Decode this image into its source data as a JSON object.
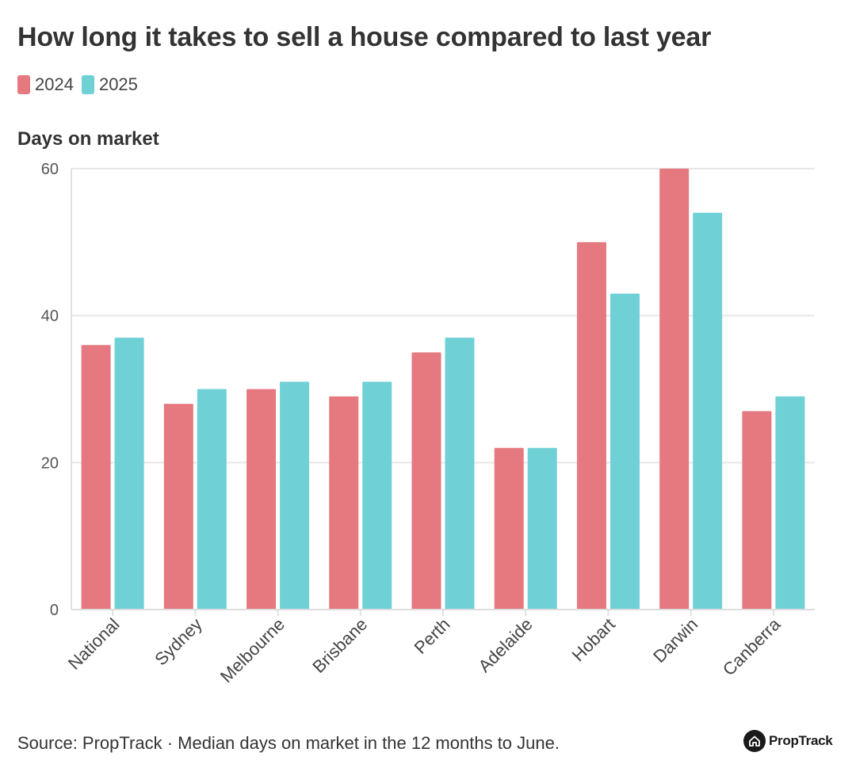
{
  "chart_data": {
    "type": "bar",
    "title": "How long it takes to sell a house compared to last year",
    "ylabel": "Days on market",
    "xlabel": "",
    "ylim": [
      0,
      60
    ],
    "yticks": [
      0,
      20,
      40,
      60
    ],
    "grid": true,
    "legend_position": "top-left",
    "categories": [
      "National",
      "Sydney",
      "Melbourne",
      "Brisbane",
      "Perth",
      "Adelaide",
      "Hobart",
      "Darwin",
      "Canberra"
    ],
    "series": [
      {
        "name": "2024",
        "color": "#e5797f",
        "values": [
          36,
          28,
          30,
          29,
          35,
          22,
          50,
          60,
          27
        ]
      },
      {
        "name": "2025",
        "color": "#6fd0d6",
        "values": [
          37,
          30,
          31,
          31,
          37,
          22,
          43,
          54,
          29
        ]
      }
    ]
  },
  "footer": {
    "source": "Source: PropTrack · Median days on market in the 12 months to June."
  },
  "brand": {
    "name": "PropTrack",
    "icon": "house-icon"
  }
}
